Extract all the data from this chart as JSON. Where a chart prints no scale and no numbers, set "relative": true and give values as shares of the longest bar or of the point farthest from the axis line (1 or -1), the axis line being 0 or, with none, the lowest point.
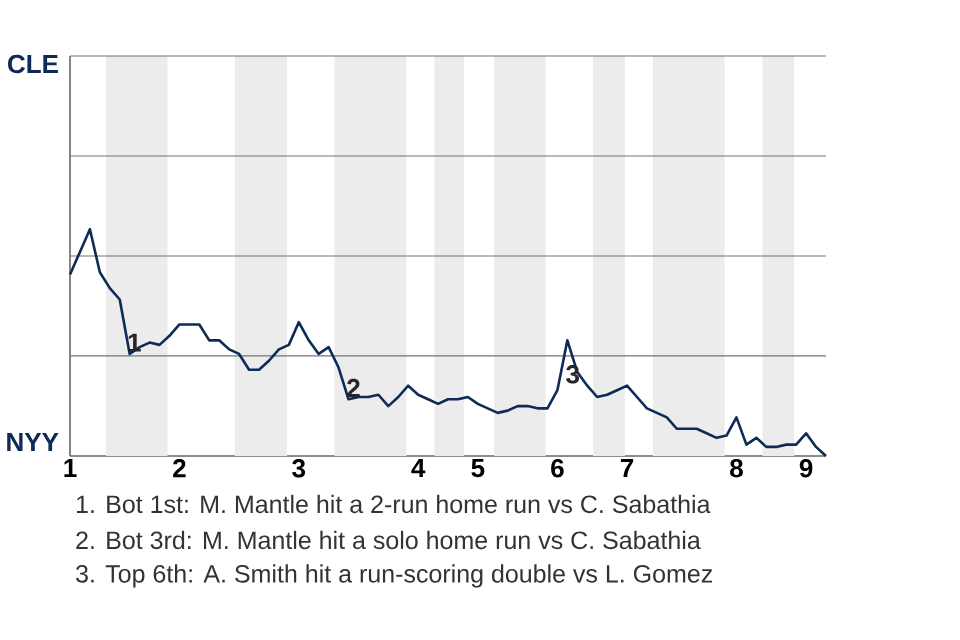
{
  "chart_data": {
    "type": "line",
    "relative": true,
    "categories": [
      "1",
      null,
      null,
      null,
      null,
      null,
      null,
      null,
      null,
      null,
      null,
      "2",
      null,
      null,
      null,
      null,
      null,
      null,
      null,
      null,
      null,
      null,
      null,
      "3",
      null,
      null,
      null,
      null,
      null,
      null,
      null,
      null,
      null,
      null,
      null,
      "4",
      null,
      null,
      null,
      null,
      null,
      "5",
      null,
      null,
      null,
      null,
      null,
      null,
      null,
      "6",
      null,
      null,
      null,
      null,
      null,
      null,
      "7",
      null,
      null,
      null,
      null,
      null,
      null,
      null,
      null,
      null,
      null,
      "8",
      null,
      null,
      null,
      null,
      null,
      null,
      "9",
      null,
      null
    ],
    "series": [
      {
        "color": "#0d2b56",
        "values": [
          0.8,
          0.9,
          1,
          0.81,
          0.74,
          0.69,
          0.45,
          0.48,
          0.5,
          0.49,
          0.53,
          0.58,
          0.58,
          0.58,
          0.51,
          0.51,
          0.47,
          0.45,
          0.38,
          0.38,
          0.42,
          0.47,
          0.49,
          0.59,
          0.51,
          0.45,
          0.48,
          0.39,
          0.25,
          0.26,
          0.26,
          0.27,
          0.22,
          0.26,
          0.31,
          0.27,
          0.25,
          0.23,
          0.25,
          0.25,
          0.26,
          0.23,
          0.21,
          0.19,
          0.2,
          0.22,
          0.22,
          0.21,
          0.21,
          0.29,
          0.51,
          0.37,
          0.31,
          0.26,
          0.27,
          0.29,
          0.31,
          0.26,
          0.21,
          0.19,
          0.17,
          0.12,
          0.12,
          0.12,
          0.1,
          0.08,
          0.09,
          0.17,
          0.05,
          0.08,
          0.04,
          0.04,
          0.05,
          0.05,
          0.1,
          0.04,
          0
        ]
      }
    ],
    "marker": "none",
    "line_style": "solid",
    "ref_lines": [
      {
        "axis": "y",
        "value": 0.441,
        "color": "#737373"
      },
      {
        "axis": "y",
        "value": 0.882,
        "color": "#737373"
      },
      {
        "axis": "y",
        "value": 1.323,
        "color": "#737373"
      },
      {
        "axis": "y",
        "value": 1.764,
        "color": "#737373"
      }
    ],
    "annotations": [
      "CLE",
      "NYY",
      {
        "text": "1",
        "y": 0.5
      },
      {
        "text": "2",
        "y": 0.3
      },
      {
        "text": "3",
        "y": 0.36
      },
      "1. Bot 1st: M. Mantle hit a 2-run home run vs C. Sabathia",
      "2. Bot 3rd: M. Mantle hit a solo home run vs C. Sabathia",
      "3. Top 6th: A. Smith hit a run-scoring double vs L. Gomez"
    ]
  }
}
